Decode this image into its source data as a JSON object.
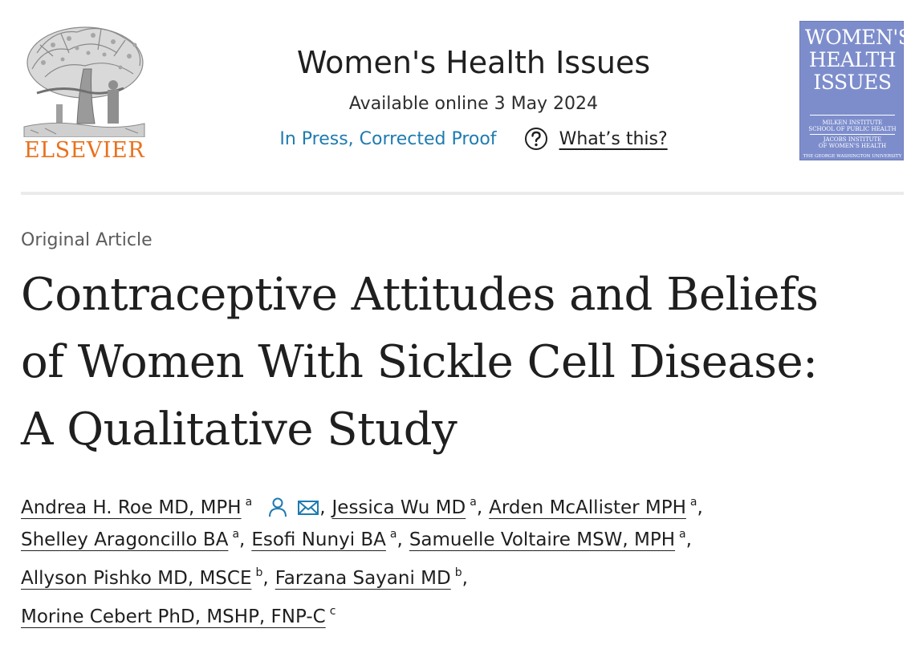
{
  "publisher": {
    "name": "ELSEVIER",
    "logo_icon": "tree-logo",
    "color": "#e9711c"
  },
  "journal": {
    "title": "Women's Health Issues",
    "available": "Available online 3 May 2024",
    "status": "In Press, Corrected Proof",
    "help_icon": "question-circle-icon",
    "help_label": "What’s this?",
    "link_color": "#1e7bb0"
  },
  "cover": {
    "title_lines": [
      "WOMEN'S",
      "HEALTH",
      "ISSUES"
    ],
    "sub1": [
      "MILKEN INSTITUTE",
      "SCHOOL OF PUBLIC HEALTH"
    ],
    "sub2": [
      "JACOBS INSTITUTE",
      "OF WOMEN'S HEALTH"
    ],
    "sub3": "THE GEORGE WASHINGTON UNIVERSITY",
    "color": "#7d8dcc"
  },
  "article": {
    "type": "Original Article",
    "title_lines": [
      "Contraceptive Attitudes and Beliefs",
      "of Women With Sickle Cell Disease:",
      "A Qualitative Study"
    ]
  },
  "authors": [
    {
      "name": "Andrea H. Roe MD, MPH",
      "aff": "a",
      "icons": [
        "person-icon",
        "envelope-icon"
      ]
    },
    {
      "name": "Jessica Wu MD",
      "aff": "a"
    },
    {
      "name": "Arden McAllister MPH",
      "aff": "a"
    },
    {
      "name": "Shelley Aragoncillo BA",
      "aff": "a"
    },
    {
      "name": "Esofi Nunyi BA",
      "aff": "a"
    },
    {
      "name": "Samuelle Voltaire MSW, MPH",
      "aff": "a"
    },
    {
      "name": "Allyson Pishko MD, MSCE",
      "aff": "b"
    },
    {
      "name": "Farzana Sayani MD",
      "aff": "b"
    },
    {
      "name": "Morine Cebert PhD, MSHP, FNP-C",
      "aff": "c"
    }
  ],
  "separators": {
    "comma": ","
  }
}
